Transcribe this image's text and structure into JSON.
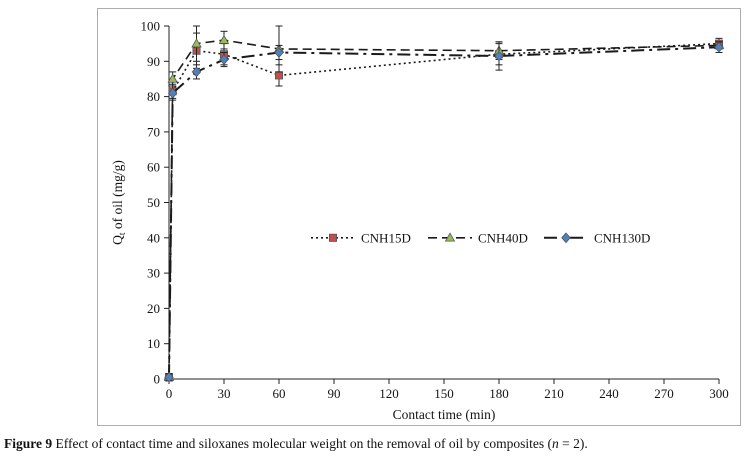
{
  "caption": {
    "label": "Figure 9",
    "body_prefix": " Effect of contact time and siloxanes molecular weight on the removal of oil by composites (",
    "n_symbol": "n",
    "body_suffix": " = 2)."
  },
  "chart_data": {
    "type": "line",
    "title": "",
    "xlabel": "Contact time (min)",
    "ylabel_prefix": "Q",
    "ylabel_sub": "t",
    "ylabel_suffix": " of oil (mg/g)",
    "xlim": [
      0,
      300
    ],
    "ylim": [
      0,
      100
    ],
    "xticks": [
      0,
      30,
      60,
      90,
      120,
      150,
      180,
      210,
      240,
      270,
      300
    ],
    "yticks": [
      0,
      10,
      20,
      30,
      40,
      50,
      60,
      70,
      80,
      90,
      100
    ],
    "grid": false,
    "legend_position": "inside-center",
    "line_color": "#1a1a1a",
    "series": [
      {
        "name": "CNH15D",
        "marker": "square",
        "color": "#C0504D",
        "line_style": "dotted",
        "x": [
          0,
          2,
          15,
          30,
          60,
          180,
          300
        ],
        "y": [
          0.5,
          81.5,
          93,
          92,
          86,
          92,
          95
        ],
        "yerr": [
          1,
          2,
          5,
          3,
          3,
          3,
          1.5
        ]
      },
      {
        "name": "CNH40D",
        "marker": "triangle",
        "color": "#9BBB59",
        "line_style": "dashed",
        "x": [
          0,
          2,
          15,
          30,
          60,
          180,
          300
        ],
        "y": [
          0.5,
          85,
          95,
          96,
          93.5,
          93,
          94.5
        ],
        "yerr": [
          1,
          2,
          5,
          2.5,
          6.5,
          2.5,
          1
        ]
      },
      {
        "name": "CNH130D",
        "marker": "diamond",
        "color": "#4F81BD",
        "line_style": "dash-dot",
        "x": [
          0,
          2,
          15,
          30,
          60,
          180,
          300
        ],
        "y": [
          0.5,
          81,
          87,
          90.5,
          92.5,
          91.5,
          94
        ],
        "yerr": [
          1,
          2,
          2,
          2,
          2,
          4,
          1.5
        ]
      }
    ]
  }
}
